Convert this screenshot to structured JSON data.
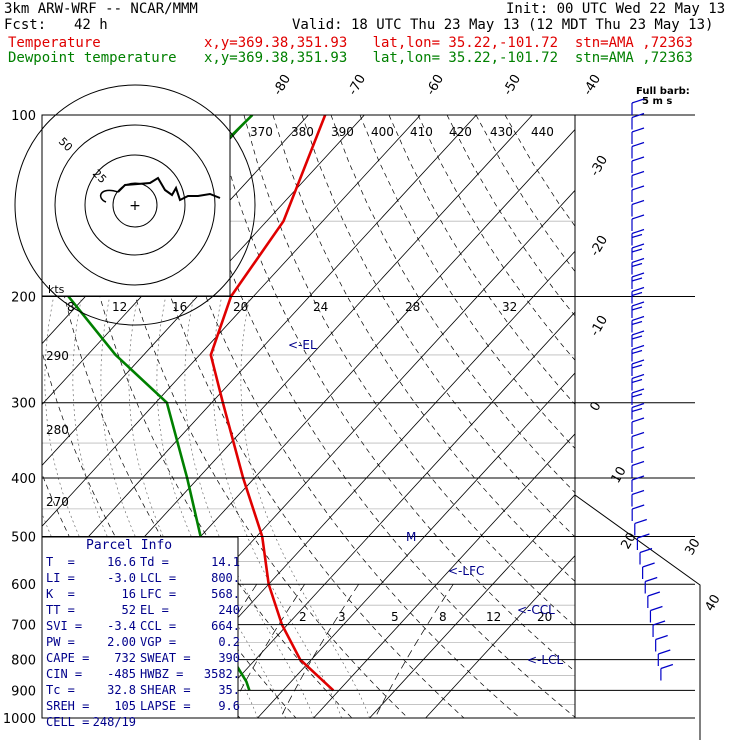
{
  "header": {
    "model": "3km ARW-WRF -- NCAR/MMM",
    "init": "Init: 00 UTC Wed 22 May 13",
    "fcst_label": "Fcst:",
    "fcst_hours": "42 h",
    "valid": "Valid: 18 UTC Thu 23 May 13 (12 MDT Thu 23 May 13)",
    "temp_label": "Temperature",
    "dew_label": "Dewpoint temperature",
    "location": "x,y=369.38,351.93   lat,lon= 35.22,-101.72  stn=AMA ,72363"
  },
  "colors": {
    "temperature": "#e00000",
    "dewpoint": "#008000",
    "annotation": "#00008b",
    "wind": "#0000c8"
  },
  "chart_data": {
    "type": "skew-t",
    "pressure_ticks": [
      "100",
      "200",
      "300",
      "400",
      "500",
      "600",
      "700",
      "800",
      "900",
      "1000"
    ],
    "isotherm_labels": [
      "-80",
      "-70",
      "-60",
      "-50",
      "-40",
      "-30",
      "-20",
      "-10",
      "0",
      "10",
      "20",
      "30",
      "40"
    ],
    "theta_labels": [
      "370",
      "380",
      "390",
      "400",
      "410",
      "420",
      "430",
      "440",
      "290",
      "280",
      "270"
    ],
    "mixing_ratio_labels": [
      "2",
      "3",
      "5",
      "8",
      "12",
      "20"
    ],
    "hodograph": {
      "units": "kts",
      "ring_labels": [
        "50",
        "25"
      ],
      "speed_ticks": [
        "8",
        "12",
        "16",
        "20",
        "24",
        "28",
        "32"
      ]
    },
    "temperature_profile": [
      {
        "p": 100,
        "t": -67
      },
      {
        "p": 150,
        "t": -57
      },
      {
        "p": 200,
        "t": -54
      },
      {
        "p": 250,
        "t": -48
      },
      {
        "p": 300,
        "t": -38
      },
      {
        "p": 400,
        "t": -22
      },
      {
        "p": 500,
        "t": -9
      },
      {
        "p": 600,
        "t": 0
      },
      {
        "p": 700,
        "t": 9
      },
      {
        "p": 800,
        "t": 18
      },
      {
        "p": 900,
        "t": 29
      }
    ],
    "dewpoint_profile": [
      {
        "p": 100,
        "t": -80
      },
      {
        "p": 200,
        "t": -83
      },
      {
        "p": 250,
        "t": -65
      },
      {
        "p": 300,
        "t": -48
      },
      {
        "p": 400,
        "t": -32
      },
      {
        "p": 500,
        "t": -20
      },
      {
        "p": 600,
        "t": -20
      },
      {
        "p": 700,
        "t": -22
      },
      {
        "p": 800,
        "t": 6
      },
      {
        "p": 870,
        "t": 12
      },
      {
        "p": 900,
        "t": 14
      }
    ],
    "level_markers": [
      {
        "label": "<-EL",
        "p": 240
      },
      {
        "label": "<-LFC",
        "p": 568
      },
      {
        "label": "<-CCL",
        "p": 664
      },
      {
        "label": "<-LCL",
        "p": 800
      },
      {
        "label": "M",
        "p": 500
      }
    ],
    "wind_title": "Full barb:",
    "wind_units": "5 m s",
    "wind_barb_pressures": [
      110,
      130,
      150,
      170,
      190,
      210,
      230,
      250,
      270,
      290,
      310,
      330,
      350,
      370,
      390,
      410,
      430,
      450,
      470,
      490,
      510,
      530,
      550,
      570,
      590,
      610,
      630,
      650,
      670,
      690,
      710,
      730,
      750,
      770,
      790,
      810,
      830,
      850,
      870,
      890
    ]
  },
  "parcel_info": {
    "title": "Parcel Info",
    "rows": [
      [
        "T  =",
        "16.6",
        "Td =",
        "14.1"
      ],
      [
        "LI =",
        "-3.0",
        "LCL =",
        "800."
      ],
      [
        "K  =",
        "16",
        "LFC =",
        "568."
      ],
      [
        "TT =",
        "52",
        "EL =",
        "240"
      ],
      [
        "SVI =",
        "-3.4",
        "CCL =",
        "664."
      ],
      [
        "PW =",
        "2.00",
        "VGP =",
        "0.2"
      ],
      [
        "CAPE =",
        "732",
        "SWEAT =",
        "390"
      ],
      [
        "CIN =",
        "-485",
        "HWBZ =",
        "3582."
      ],
      [
        "Tc =",
        "32.8",
        "SHEAR =",
        "35."
      ],
      [
        "SREH =",
        "105",
        "LAPSE =",
        "9.6"
      ],
      [
        "CELL =",
        "248/19",
        "",
        ""
      ]
    ]
  }
}
